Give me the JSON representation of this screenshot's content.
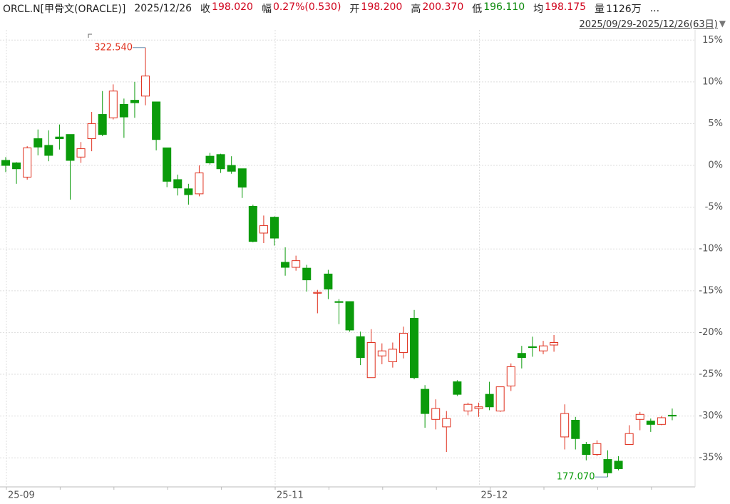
{
  "header": {
    "symbol": "ORCL.N[甲骨文(ORACLE)]",
    "date": "2025/12/26",
    "items": [
      {
        "label": "收",
        "value": "198.020",
        "color": "#d0021b"
      },
      {
        "label": "幅",
        "value": "0.27%(0.530)",
        "color": "#d0021b"
      },
      {
        "label": "开",
        "value": "198.200",
        "color": "#d0021b"
      },
      {
        "label": "高",
        "value": "200.370",
        "color": "#d0021b"
      },
      {
        "label": "低",
        "value": "196.110",
        "color": "#0b8a0b"
      },
      {
        "label": "均",
        "value": "198.175",
        "color": "#d0021b"
      },
      {
        "label": "量",
        "value": "1126万",
        "color": "#222222"
      }
    ],
    "range": "2025/09/29-2025/12/26(63日)"
  },
  "chart_data": {
    "type": "candlestick",
    "categories": [
      "25-09",
      null,
      null,
      null,
      null,
      null,
      null,
      null,
      null,
      null,
      null,
      null,
      null,
      null,
      null,
      null,
      null,
      null,
      null,
      null,
      null,
      null,
      null,
      null,
      null,
      "25-11",
      null,
      null,
      null,
      null,
      null,
      null,
      null,
      null,
      null,
      null,
      null,
      null,
      null,
      null,
      null,
      null,
      null,
      null,
      "25-12",
      null,
      null,
      null,
      null,
      null,
      null,
      null,
      null,
      null,
      null,
      null,
      null,
      null,
      null,
      null,
      null,
      null,
      null
    ],
    "open": [
      0.6,
      0.3,
      -1.4,
      3.2,
      2.4,
      3.4,
      3.7,
      1.0,
      3.2,
      6.1,
      5.7,
      7.3,
      7.8,
      8.3,
      7.6,
      2.1,
      -1.7,
      -2.8,
      -3.4,
      1.1,
      1.3,
      0,
      -0.4,
      -4.9,
      -8.1,
      -6.2,
      -11.6,
      -12.2,
      -12.3,
      -15.3,
      -13.0,
      -16.3,
      -16.3,
      -20.5,
      -25.4,
      -22.8,
      -23.5,
      -22.4,
      -18.3,
      -26.8,
      -30.4,
      -31.3,
      -25.9,
      -29.4,
      -29.1,
      -27.4,
      -29.4,
      -26.4,
      -22.5,
      -21.7,
      -22.2,
      -21.5,
      -32.5,
      -30.5,
      -33.4,
      -34.6,
      -35.2,
      -35.4,
      -33.4,
      -30.4,
      -30.6,
      -31.0,
      -29.9
    ],
    "high": [
      1.0,
      0.4,
      2.3,
      4.3,
      4.2,
      4.9,
      3.7,
      2.8,
      6.4,
      8.9,
      9.7,
      8.0,
      10.0,
      14.1,
      7.6,
      2.1,
      -1.1,
      -2.2,
      0,
      1.5,
      1.4,
      1.1,
      -0.4,
      -4.7,
      -6.0,
      -6.1,
      -9.8,
      -10.8,
      -11.9,
      -14.9,
      -12.5,
      -16.0,
      -16.3,
      -19.9,
      -19.6,
      -21.3,
      -21.2,
      -19.3,
      -17.3,
      -26.3,
      -28.0,
      -29.4,
      -25.7,
      -28.4,
      -28.4,
      -25.9,
      -26.5,
      -23.7,
      -21.6,
      -20.5,
      -21.0,
      -20.3,
      -28.6,
      -30.1,
      -33.1,
      -32.9,
      -34.1,
      -34.8,
      -31.1,
      -29.5,
      -30.3,
      -30.0,
      -29.1
    ],
    "low": [
      -0.8,
      -2.2,
      -1.7,
      1.2,
      0.5,
      1.9,
      -4.1,
      0.3,
      1.7,
      3.5,
      5.5,
      3.3,
      5.7,
      7.2,
      1.8,
      -2.6,
      -3.6,
      -4.7,
      -3.7,
      0.1,
      -0.9,
      -1.0,
      -3.9,
      -9.2,
      -9.3,
      -9.6,
      -13.2,
      -12.6,
      -15.1,
      -17.7,
      -16.0,
      -19.0,
      -19.9,
      -23.9,
      -25.4,
      -23.8,
      -24.2,
      -23.1,
      -25.6,
      -31.4,
      -31.6,
      -34.3,
      -27.6,
      -29.9,
      -30.1,
      -29.3,
      -29.5,
      -27.0,
      -24.3,
      -22.9,
      -22.6,
      -22.3,
      -34.0,
      -34.0,
      -35.3,
      -34.8,
      -37.3,
      -36.5,
      -33.4,
      -31.7,
      -31.9,
      -31.1,
      -30.5
    ],
    "close": [
      0.0,
      -0.4,
      2.1,
      2.2,
      1.2,
      3.2,
      0.6,
      2.0,
      5.0,
      3.7,
      8.9,
      5.8,
      7.5,
      10.7,
      3.1,
      -1.9,
      -2.7,
      -3.5,
      -0.9,
      0.3,
      -0.4,
      -0.7,
      -2.6,
      -9.1,
      -7.2,
      -8.7,
      -12.2,
      -11.4,
      -13.7,
      -15.2,
      -14.8,
      -16.4,
      -19.7,
      -23.0,
      -21.2,
      -22.2,
      -22.0,
      -20.1,
      -25.4,
      -29.7,
      -29.1,
      -30.3,
      -27.4,
      -28.6,
      -28.9,
      -28.9,
      -26.5,
      -24.1,
      -23.0,
      -21.8,
      -21.6,
      -21.2,
      -29.7,
      -32.7,
      -34.6,
      -33.3,
      -36.8,
      -36.3,
      -32.1,
      -29.8,
      -31.0,
      -30.2,
      -30.0
    ],
    "up_color": "#e0301e",
    "down_color": "#0b9b0b",
    "max_label": "322.540",
    "min_label": "177.070",
    "ylim": [
      -38.48,
      15.96
    ],
    "yticks": [
      {
        "value": 15,
        "label": "15%"
      },
      {
        "value": 10,
        "label": "10%"
      },
      {
        "value": 5,
        "label": "5%"
      },
      {
        "value": 0,
        "label": "0%"
      },
      {
        "value": -5,
        "label": "-5%"
      },
      {
        "value": -10,
        "label": "-10%"
      },
      {
        "value": -15,
        "label": "-15%"
      },
      {
        "value": -20,
        "label": "-20%"
      },
      {
        "value": -25,
        "label": "-25%"
      },
      {
        "value": -30,
        "label": "-30%"
      },
      {
        "value": -35,
        "label": "-35%"
      }
    ],
    "grid": true
  }
}
